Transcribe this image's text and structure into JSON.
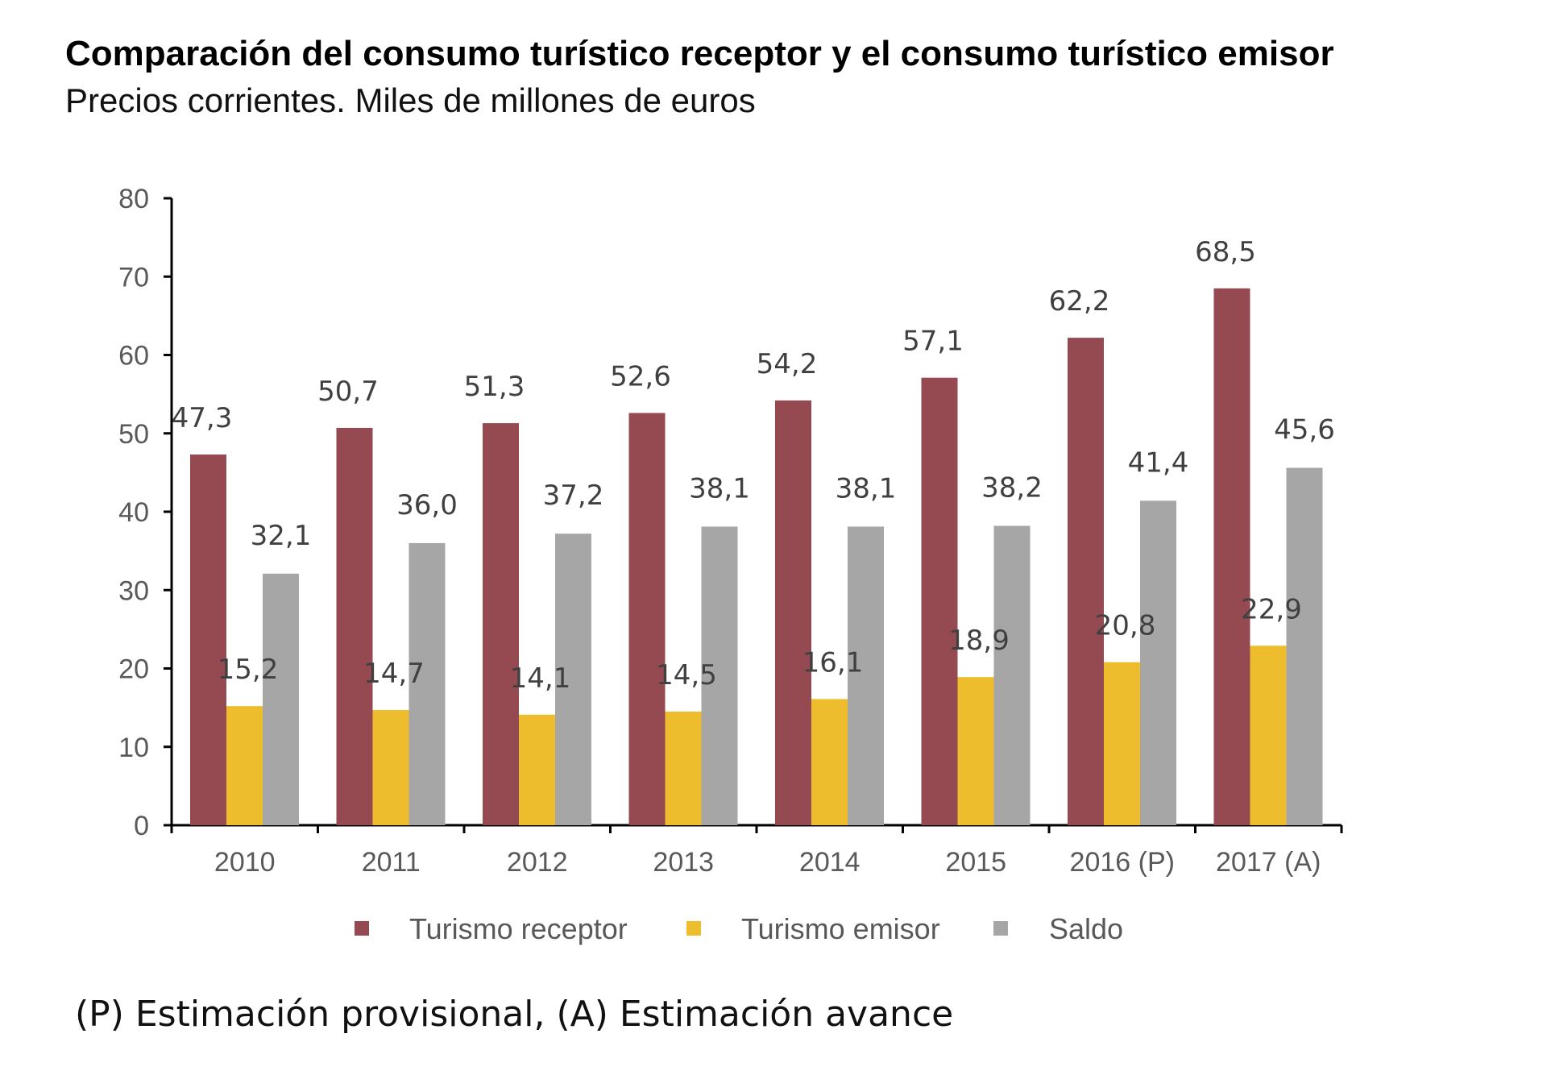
{
  "chart_data": {
    "type": "bar",
    "title": "Comparación del consumo turístico receptor y el consumo turístico emisor",
    "subtitle": "Precios corrientes. Miles de millones de euros",
    "categories": [
      "2010",
      "2011",
      "2012",
      "2013",
      "2014",
      "2015",
      "2016 (P)",
      "2017 (A)"
    ],
    "series": [
      {
        "name": "Turismo receptor",
        "color": "#954A52",
        "values": [
          47.3,
          50.7,
          51.3,
          52.6,
          54.2,
          57.1,
          62.2,
          68.5
        ],
        "labels": [
          "47,3",
          "50,7",
          "51,3",
          "52,6",
          "54,2",
          "57,1",
          "62,2",
          "68,5"
        ]
      },
      {
        "name": "Turismo emisor",
        "color": "#EDBD2E",
        "values": [
          15.2,
          14.7,
          14.1,
          14.5,
          16.1,
          18.9,
          20.8,
          22.9
        ],
        "labels": [
          "15,2",
          "14,7",
          "14,1",
          "14,5",
          "16,1",
          "18,9",
          "20,8",
          "22,9"
        ]
      },
      {
        "name": "Saldo",
        "color": "#A6A6A6",
        "values": [
          32.1,
          36.0,
          37.2,
          38.1,
          38.1,
          38.2,
          41.4,
          45.6
        ],
        "labels": [
          "32,1",
          "36,0",
          "37,2",
          "38,1",
          "38,1",
          "38,2",
          "41,4",
          "45,6"
        ]
      }
    ],
    "ylim": [
      0,
      80
    ],
    "yticks": [
      "0",
      "10",
      "20",
      "30",
      "40",
      "50",
      "60",
      "70",
      "80"
    ],
    "xlabel": "",
    "ylabel": "",
    "legend_position": "bottom",
    "grid": false
  },
  "footnote": "(P) Estimación provisional, (A) Estimación avance"
}
